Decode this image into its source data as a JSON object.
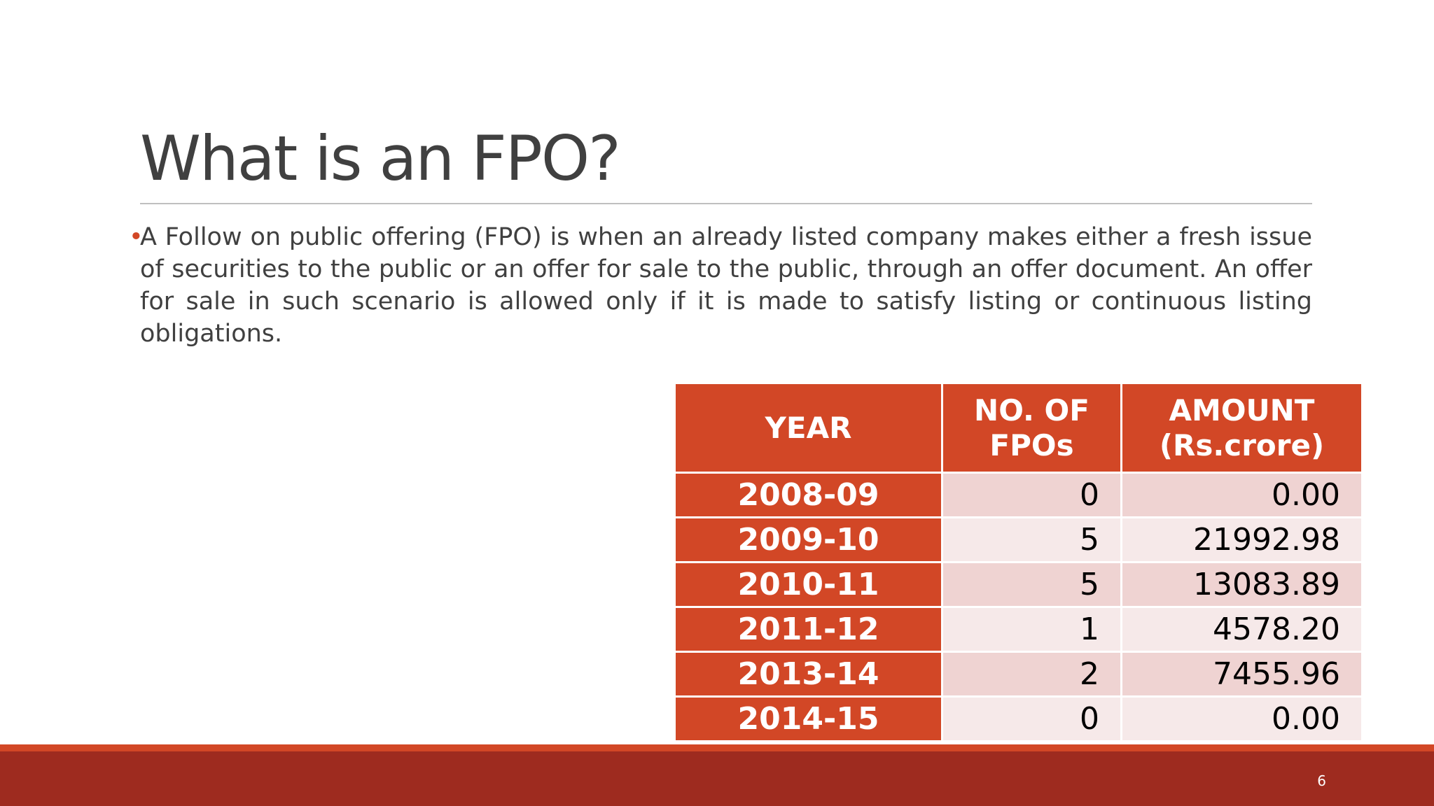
{
  "slide": {
    "title": "What is an FPO?",
    "bullet": "A Follow on public offering (FPO) is when an already listed company makes either a fresh issue of securities to the public or an offer for sale to the public, through an offer document. An offer for sale in such scenario is allowed only if it is made to satisfy listing or continuous listing obligations.",
    "page_number": "6"
  },
  "table": {
    "headers": [
      "YEAR",
      "NO. OF FPOs",
      "AMOUNT (Rs.crore)"
    ],
    "rows": [
      {
        "year": "2008-09",
        "count": "0",
        "amount": "0.00"
      },
      {
        "year": "2009-10",
        "count": "5",
        "amount": "21992.98"
      },
      {
        "year": "2010-11",
        "count": "5",
        "amount": "13083.89"
      },
      {
        "year": "2011-12",
        "count": "1",
        "amount": "4578.20"
      },
      {
        "year": "2013-14",
        "count": "2",
        "amount": "7455.96"
      },
      {
        "year": "2014-15",
        "count": "0",
        "amount": "0.00"
      }
    ]
  },
  "colors": {
    "accent": "#d24726",
    "footer": "#9e2b1f",
    "title_text": "#404040",
    "row_shade_dark": "#efd3d2",
    "row_shade_light": "#f6e9e9"
  }
}
